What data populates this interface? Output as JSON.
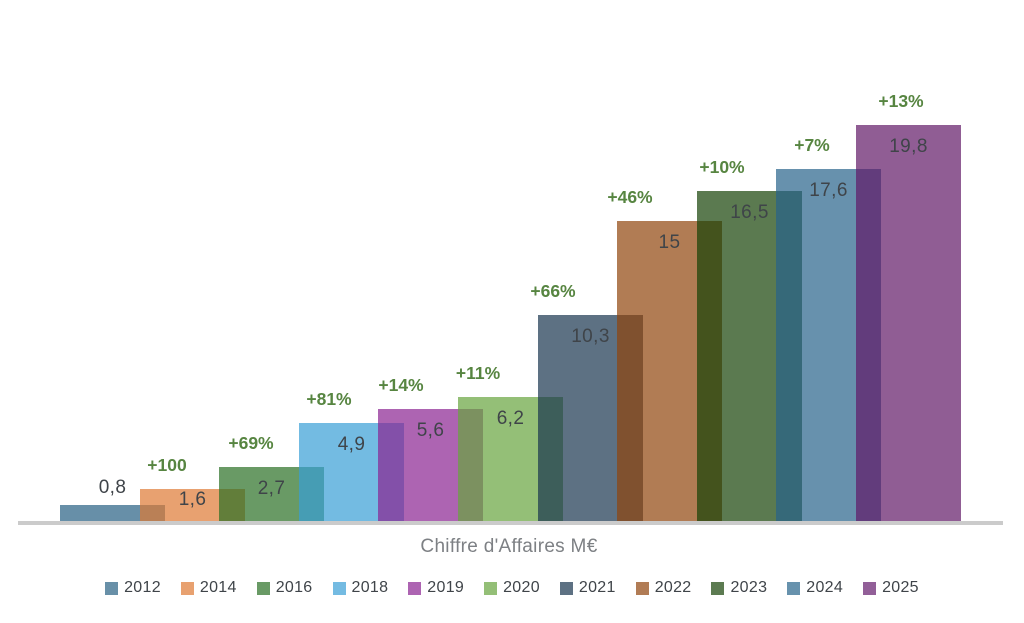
{
  "chart_data": {
    "type": "bar",
    "title": "Chiffre d'Affaires M€",
    "categories": [
      "2012",
      "2014",
      "2016",
      "2018",
      "2019",
      "2020",
      "2021",
      "2022",
      "2023",
      "2024",
      "2025"
    ],
    "values": [
      0.8,
      1.6,
      2.7,
      4.9,
      5.6,
      6.2,
      10.3,
      15,
      16.5,
      17.6,
      19.8
    ],
    "value_labels": [
      "0,8",
      "1,6",
      "2,7",
      "4,9",
      "5,6",
      "6,2",
      "10,3",
      "15",
      "16,5",
      "17,6",
      "19,8"
    ],
    "growth_labels": [
      "",
      "+100",
      "+69%",
      "+81%",
      "+14%",
      "+11%",
      "+66%",
      "+46%",
      "+10%",
      "+7%",
      "+13%"
    ],
    "bar_colors": [
      "#6890a8",
      "#e8a170",
      "#699a65",
      "#74bbe2",
      "#ad64b2",
      "#94bf77",
      "#5d7183",
      "#b17c55",
      "#5c7b51",
      "#6792ad",
      "#925f98"
    ],
    "bar_fill_colors": [
      "#276083",
      "#de7933",
      "#296f23",
      "#389ed6",
      "#8a2291",
      "#66a43d",
      "#18344e",
      "#90440c",
      "#164206",
      "#26638a",
      "#611866"
    ],
    "bar_fill_alpha": 0.7,
    "value_label_color": "#3f4449",
    "growth_label_color": "#578541",
    "axis_line_color": "#cbcbcb",
    "ylim": [
      0,
      20
    ],
    "grid": "off",
    "legend_position": "bottom",
    "xlabel": "",
    "ylabel": ""
  }
}
